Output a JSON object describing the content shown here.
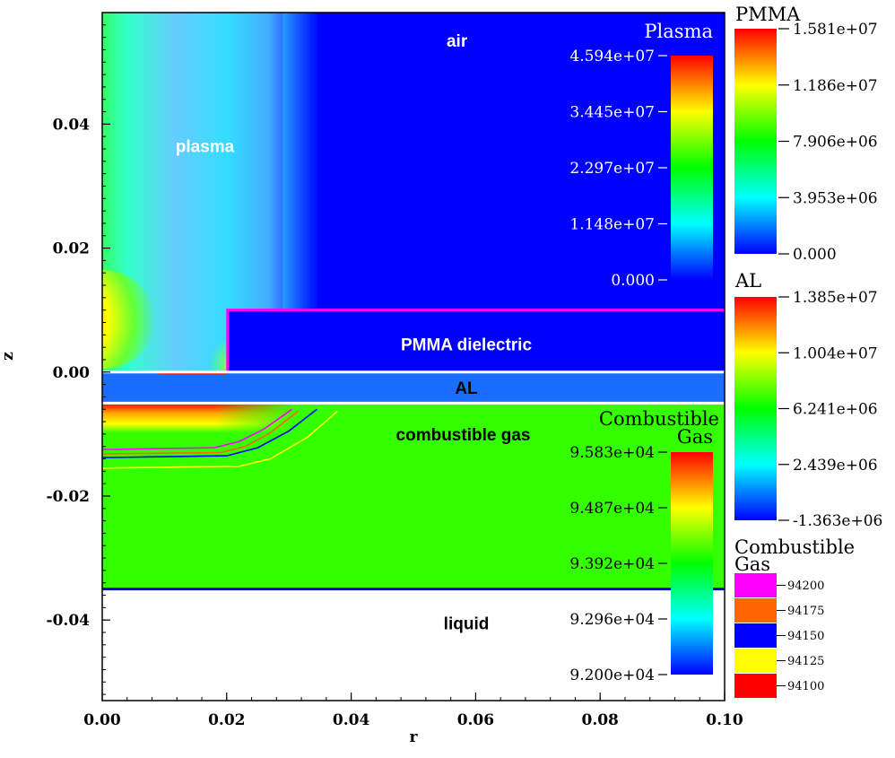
{
  "chart_data": {
    "type": "heatmap",
    "title": "",
    "xlabel": "r",
    "ylabel": "z",
    "xlim": [
      0.0,
      0.1
    ],
    "ylim": [
      -0.053,
      0.058
    ],
    "x_ticks": [
      "0.00",
      "0.02",
      "0.04",
      "0.06",
      "0.08",
      "0.10"
    ],
    "x_tick_values": [
      0.0,
      0.02,
      0.04,
      0.06,
      0.08,
      0.1
    ],
    "y_ticks": [
      "0.04",
      "0.02",
      "0.00",
      "-0.02",
      "-0.04"
    ],
    "y_tick_values": [
      0.04,
      0.02,
      0.0,
      -0.02,
      -0.04
    ],
    "region_labels": [
      {
        "text": "air",
        "r": 0.057,
        "z": 0.0535
      },
      {
        "text": "plasma",
        "r": 0.0165,
        "z": 0.0365
      },
      {
        "text": "PMMA dielectric",
        "r": 0.0585,
        "z": 0.0045
      },
      {
        "text": "AL",
        "r": 0.0585,
        "z": -0.0025
      },
      {
        "text": "combustible gas",
        "r": 0.058,
        "z": -0.01
      },
      {
        "text": "liquid",
        "r": 0.0585,
        "z": -0.0405
      }
    ],
    "regions": {
      "pmma_top": 0.01,
      "pmma_left": 0.02,
      "al_top": 0.0,
      "al_bottom": -0.005,
      "gas_bottom": -0.035
    },
    "contours": [
      {
        "level": 94200,
        "color": "#ff00ff",
        "points": [
          [
            0.0,
            -0.0125
          ],
          [
            0.018,
            -0.0122
          ],
          [
            0.022,
            -0.0112
          ],
          [
            0.026,
            -0.0092
          ],
          [
            0.0305,
            -0.006
          ]
        ]
      },
      {
        "level": 94175,
        "color": "#ff6600",
        "points": [
          [
            0.0,
            -0.0132
          ],
          [
            0.019,
            -0.013
          ],
          [
            0.023,
            -0.012
          ],
          [
            0.027,
            -0.0098
          ],
          [
            0.0315,
            -0.0063
          ]
        ]
      },
      {
        "level": 94150,
        "color": "#0000ff",
        "points": [
          [
            0.0,
            -0.0138
          ],
          [
            0.02,
            -0.0135
          ],
          [
            0.025,
            -0.0122
          ],
          [
            0.03,
            -0.0095
          ],
          [
            0.0345,
            -0.006
          ]
        ]
      },
      {
        "level": 94125,
        "color": "#ffff00",
        "points": [
          [
            0.0,
            -0.0155
          ],
          [
            0.022,
            -0.0152
          ],
          [
            0.027,
            -0.014
          ],
          [
            0.033,
            -0.0105
          ],
          [
            0.0378,
            -0.0063
          ]
        ]
      }
    ],
    "legends": [
      {
        "title": "Plasma",
        "labels": [
          "4.594e+07",
          "3.445e+07",
          "2.297e+07",
          "1.148e+07",
          "0.000"
        ],
        "values": [
          45940000,
          34450000,
          22970000,
          11480000,
          0
        ],
        "min": 0,
        "max": 45940000
      },
      {
        "title": "PMMA",
        "labels": [
          "1.581e+07",
          "1.186e+07",
          "7.906e+06",
          "3.953e+06",
          "0.000"
        ],
        "values": [
          15810000,
          11860000,
          7906000,
          3953000,
          0
        ],
        "min": 0,
        "max": 15810000
      },
      {
        "title": "AL",
        "labels": [
          "1.385e+07",
          "1.004e+07",
          "6.241e+06",
          "2.439e+06",
          "-1.363e+06"
        ],
        "values": [
          13850000,
          10040000,
          6241000,
          2439000,
          -1363000
        ],
        "min": -1363000,
        "max": 13850000
      },
      {
        "title_line1": "Combustible",
        "title_line2": "Gas",
        "labels": [
          "9.583e+04",
          "9.487e+04",
          "9.392e+04",
          "9.296e+04",
          "9.200e+04"
        ],
        "values": [
          95830,
          94870,
          93920,
          92960,
          92000
        ],
        "min": 92000,
        "max": 95830
      },
      {
        "title_line1": "Combustible",
        "title_line2": "Gas",
        "type": "contour-levels",
        "entries": [
          {
            "label": "94200",
            "color": "#ff00ff"
          },
          {
            "label": "94175",
            "color": "#ff6600"
          },
          {
            "label": "94150",
            "color": "#0000ff"
          },
          {
            "label": "94125",
            "color": "#ffff00"
          },
          {
            "label": "94100",
            "color": "#ff0000"
          }
        ]
      }
    ]
  }
}
